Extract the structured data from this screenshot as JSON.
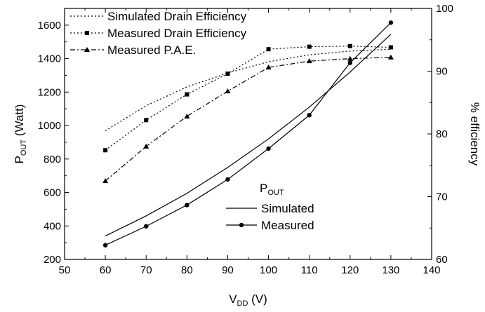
{
  "chart_data": {
    "type": "line",
    "x": [
      60,
      70,
      80,
      90,
      100,
      110,
      120,
      130
    ],
    "xlabel": {
      "main": "V",
      "sub": "DD",
      "suffix": " (V)"
    },
    "xlim": [
      50,
      140
    ],
    "x_ticks": [
      50,
      60,
      70,
      80,
      90,
      100,
      110,
      120,
      130,
      140
    ],
    "ylabel_left": {
      "main": "P",
      "sub": "OUT",
      "suffix": " (Watt)"
    },
    "ylim_left": [
      200,
      1700
    ],
    "y_ticks_left": [
      200,
      400,
      600,
      800,
      1000,
      1200,
      1400,
      1600
    ],
    "ylabel_right": "% efficiency",
    "ylim_right": [
      60,
      100
    ],
    "y_ticks_right": [
      60,
      70,
      80,
      90,
      100
    ],
    "grid": false,
    "series": [
      {
        "name": "Simulated Drain Efficiency",
        "axis": "right",
        "style": "dotted",
        "marker": "none",
        "values": [
          80.5,
          84.5,
          87.5,
          89.7,
          91.5,
          92.6,
          93.2,
          93.5
        ]
      },
      {
        "name": "Measured Drain Efficiency",
        "axis": "right",
        "style": "dotted",
        "marker": "square",
        "values": [
          77.4,
          82.2,
          86.3,
          89.6,
          93.5,
          93.9,
          94.0,
          93.8
        ]
      },
      {
        "name": "Measured P.A.E.",
        "axis": "right",
        "style": "dashdot",
        "marker": "triangle",
        "values": [
          72.5,
          78.0,
          82.8,
          86.8,
          90.6,
          91.6,
          92.0,
          92.2
        ]
      },
      {
        "name": "Simulated",
        "axis": "left",
        "style": "solid",
        "marker": "none",
        "values": [
          340,
          460,
          595,
          750,
          920,
          1110,
          1320,
          1545
        ]
      },
      {
        "name": "Measured",
        "axis": "left",
        "style": "solid",
        "marker": "circle",
        "values": [
          285,
          398,
          525,
          678,
          862,
          1062,
          1375,
          1615
        ]
      }
    ],
    "legend_top": {
      "placement": "top-left",
      "entries": [
        "Simulated Drain Efficiency",
        "Measured Drain Efficiency",
        "Measured P.A.E."
      ]
    },
    "legend_bottom": {
      "placement": "center-right",
      "title": {
        "main": "P",
        "sub": "OUT"
      },
      "entries": [
        "Simulated",
        "Measured"
      ]
    }
  }
}
